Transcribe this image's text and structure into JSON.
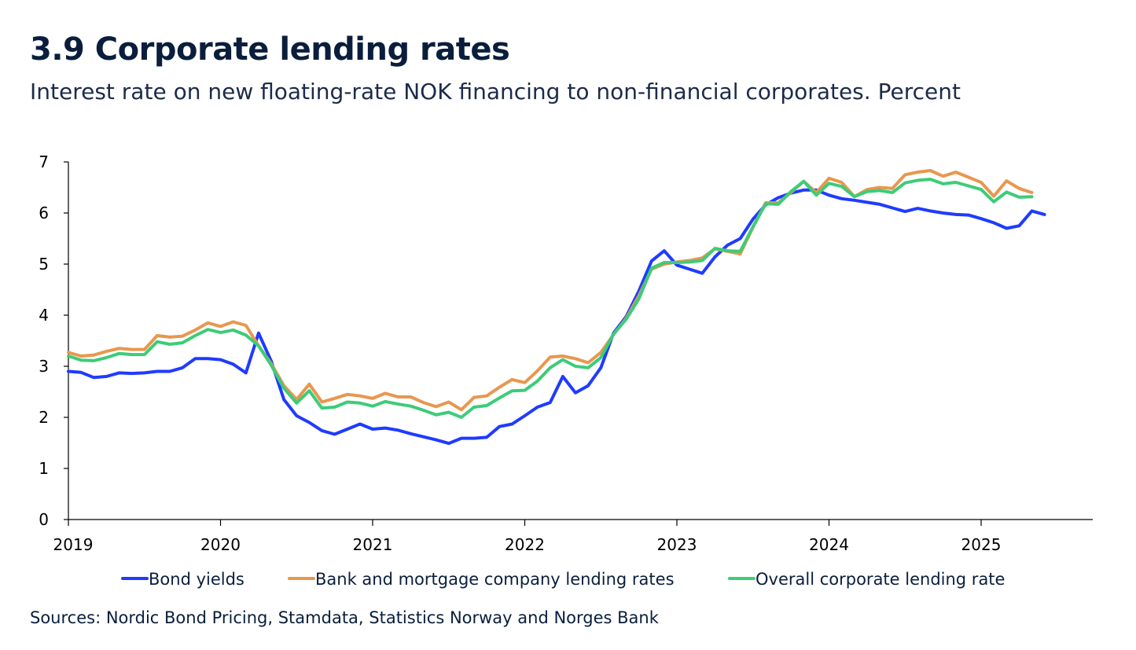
{
  "title": "3.9 Corporate lending rates",
  "subtitle": "Interest rate on new floating-rate NOK financing to non-financial corporates. Percent",
  "source": "Sources: Nordic Bond Pricing,   Stamdata, Statistics Norway and  Norges Bank",
  "chart_data": {
    "type": "line",
    "x_start": "2019-01",
    "x_frequency": "monthly",
    "x_ticks": [
      "2019",
      "2020",
      "2021",
      "2022",
      "2023",
      "2024",
      "2025"
    ],
    "ylim": [
      0,
      7
    ],
    "y_ticks": [
      "0",
      "1",
      "2",
      "3",
      "4",
      "5",
      "6",
      "7"
    ],
    "grid": false,
    "legend_position": "bottom",
    "series": [
      {
        "name": "Bond yields",
        "color": "#1f3bff",
        "values": [
          2.9,
          2.88,
          2.78,
          2.8,
          2.87,
          2.86,
          2.87,
          2.9,
          2.9,
          2.97,
          3.15,
          3.15,
          3.13,
          3.04,
          2.87,
          3.65,
          3.1,
          2.35,
          2.03,
          1.9,
          1.74,
          1.67,
          1.77,
          1.87,
          1.77,
          1.79,
          1.75,
          1.68,
          1.62,
          1.56,
          1.49,
          1.59,
          1.59,
          1.61,
          1.82,
          1.87,
          2.03,
          2.2,
          2.29,
          2.8,
          2.48,
          2.62,
          2.97,
          3.65,
          3.97,
          4.47,
          5.06,
          5.26,
          4.98,
          4.9,
          4.82,
          5.14,
          5.37,
          5.5,
          5.88,
          6.16,
          6.3,
          6.39,
          6.45,
          6.45,
          6.35,
          6.28,
          6.25,
          6.21,
          6.17,
          6.1,
          6.03,
          6.09,
          6.04,
          6.0,
          5.97,
          5.96,
          5.89,
          5.81,
          5.7,
          5.75,
          6.04,
          5.97
        ]
      },
      {
        "name": "Bank and mortgage company lending rates",
        "color": "#e8974f",
        "values": [
          3.27,
          3.2,
          3.22,
          3.29,
          3.35,
          3.33,
          3.33,
          3.6,
          3.57,
          3.59,
          3.71,
          3.85,
          3.78,
          3.87,
          3.8,
          3.4,
          3.05,
          2.62,
          2.35,
          2.65,
          2.3,
          2.37,
          2.45,
          2.42,
          2.37,
          2.47,
          2.4,
          2.4,
          2.29,
          2.21,
          2.3,
          2.15,
          2.39,
          2.42,
          2.59,
          2.74,
          2.68,
          2.91,
          3.18,
          3.2,
          3.15,
          3.07,
          3.27,
          3.62,
          3.94,
          4.38,
          4.9,
          5.0,
          5.04,
          5.07,
          5.12,
          5.3,
          5.25,
          5.2,
          5.72,
          6.2,
          6.2,
          6.4,
          6.62,
          6.4,
          6.68,
          6.6,
          6.32,
          6.46,
          6.5,
          6.48,
          6.75,
          6.8,
          6.83,
          6.72,
          6.8,
          6.7,
          6.6,
          6.33,
          6.63,
          6.48,
          6.4
        ]
      },
      {
        "name": "Overall corporate lending rate",
        "color": "#3dcc78",
        "values": [
          3.2,
          3.12,
          3.11,
          3.17,
          3.25,
          3.23,
          3.23,
          3.48,
          3.43,
          3.46,
          3.6,
          3.72,
          3.66,
          3.71,
          3.61,
          3.4,
          3.02,
          2.57,
          2.28,
          2.52,
          2.18,
          2.2,
          2.3,
          2.28,
          2.22,
          2.31,
          2.26,
          2.22,
          2.14,
          2.05,
          2.1,
          2.0,
          2.2,
          2.23,
          2.38,
          2.52,
          2.53,
          2.71,
          2.97,
          3.13,
          3.0,
          2.97,
          3.17,
          3.63,
          3.92,
          4.32,
          4.92,
          5.03,
          5.03,
          5.04,
          5.07,
          5.31,
          5.26,
          5.25,
          5.73,
          6.18,
          6.17,
          6.42,
          6.62,
          6.35,
          6.58,
          6.52,
          6.32,
          6.42,
          6.44,
          6.4,
          6.59,
          6.64,
          6.66,
          6.57,
          6.6,
          6.53,
          6.46,
          6.22,
          6.41,
          6.31,
          6.32
        ]
      }
    ]
  }
}
